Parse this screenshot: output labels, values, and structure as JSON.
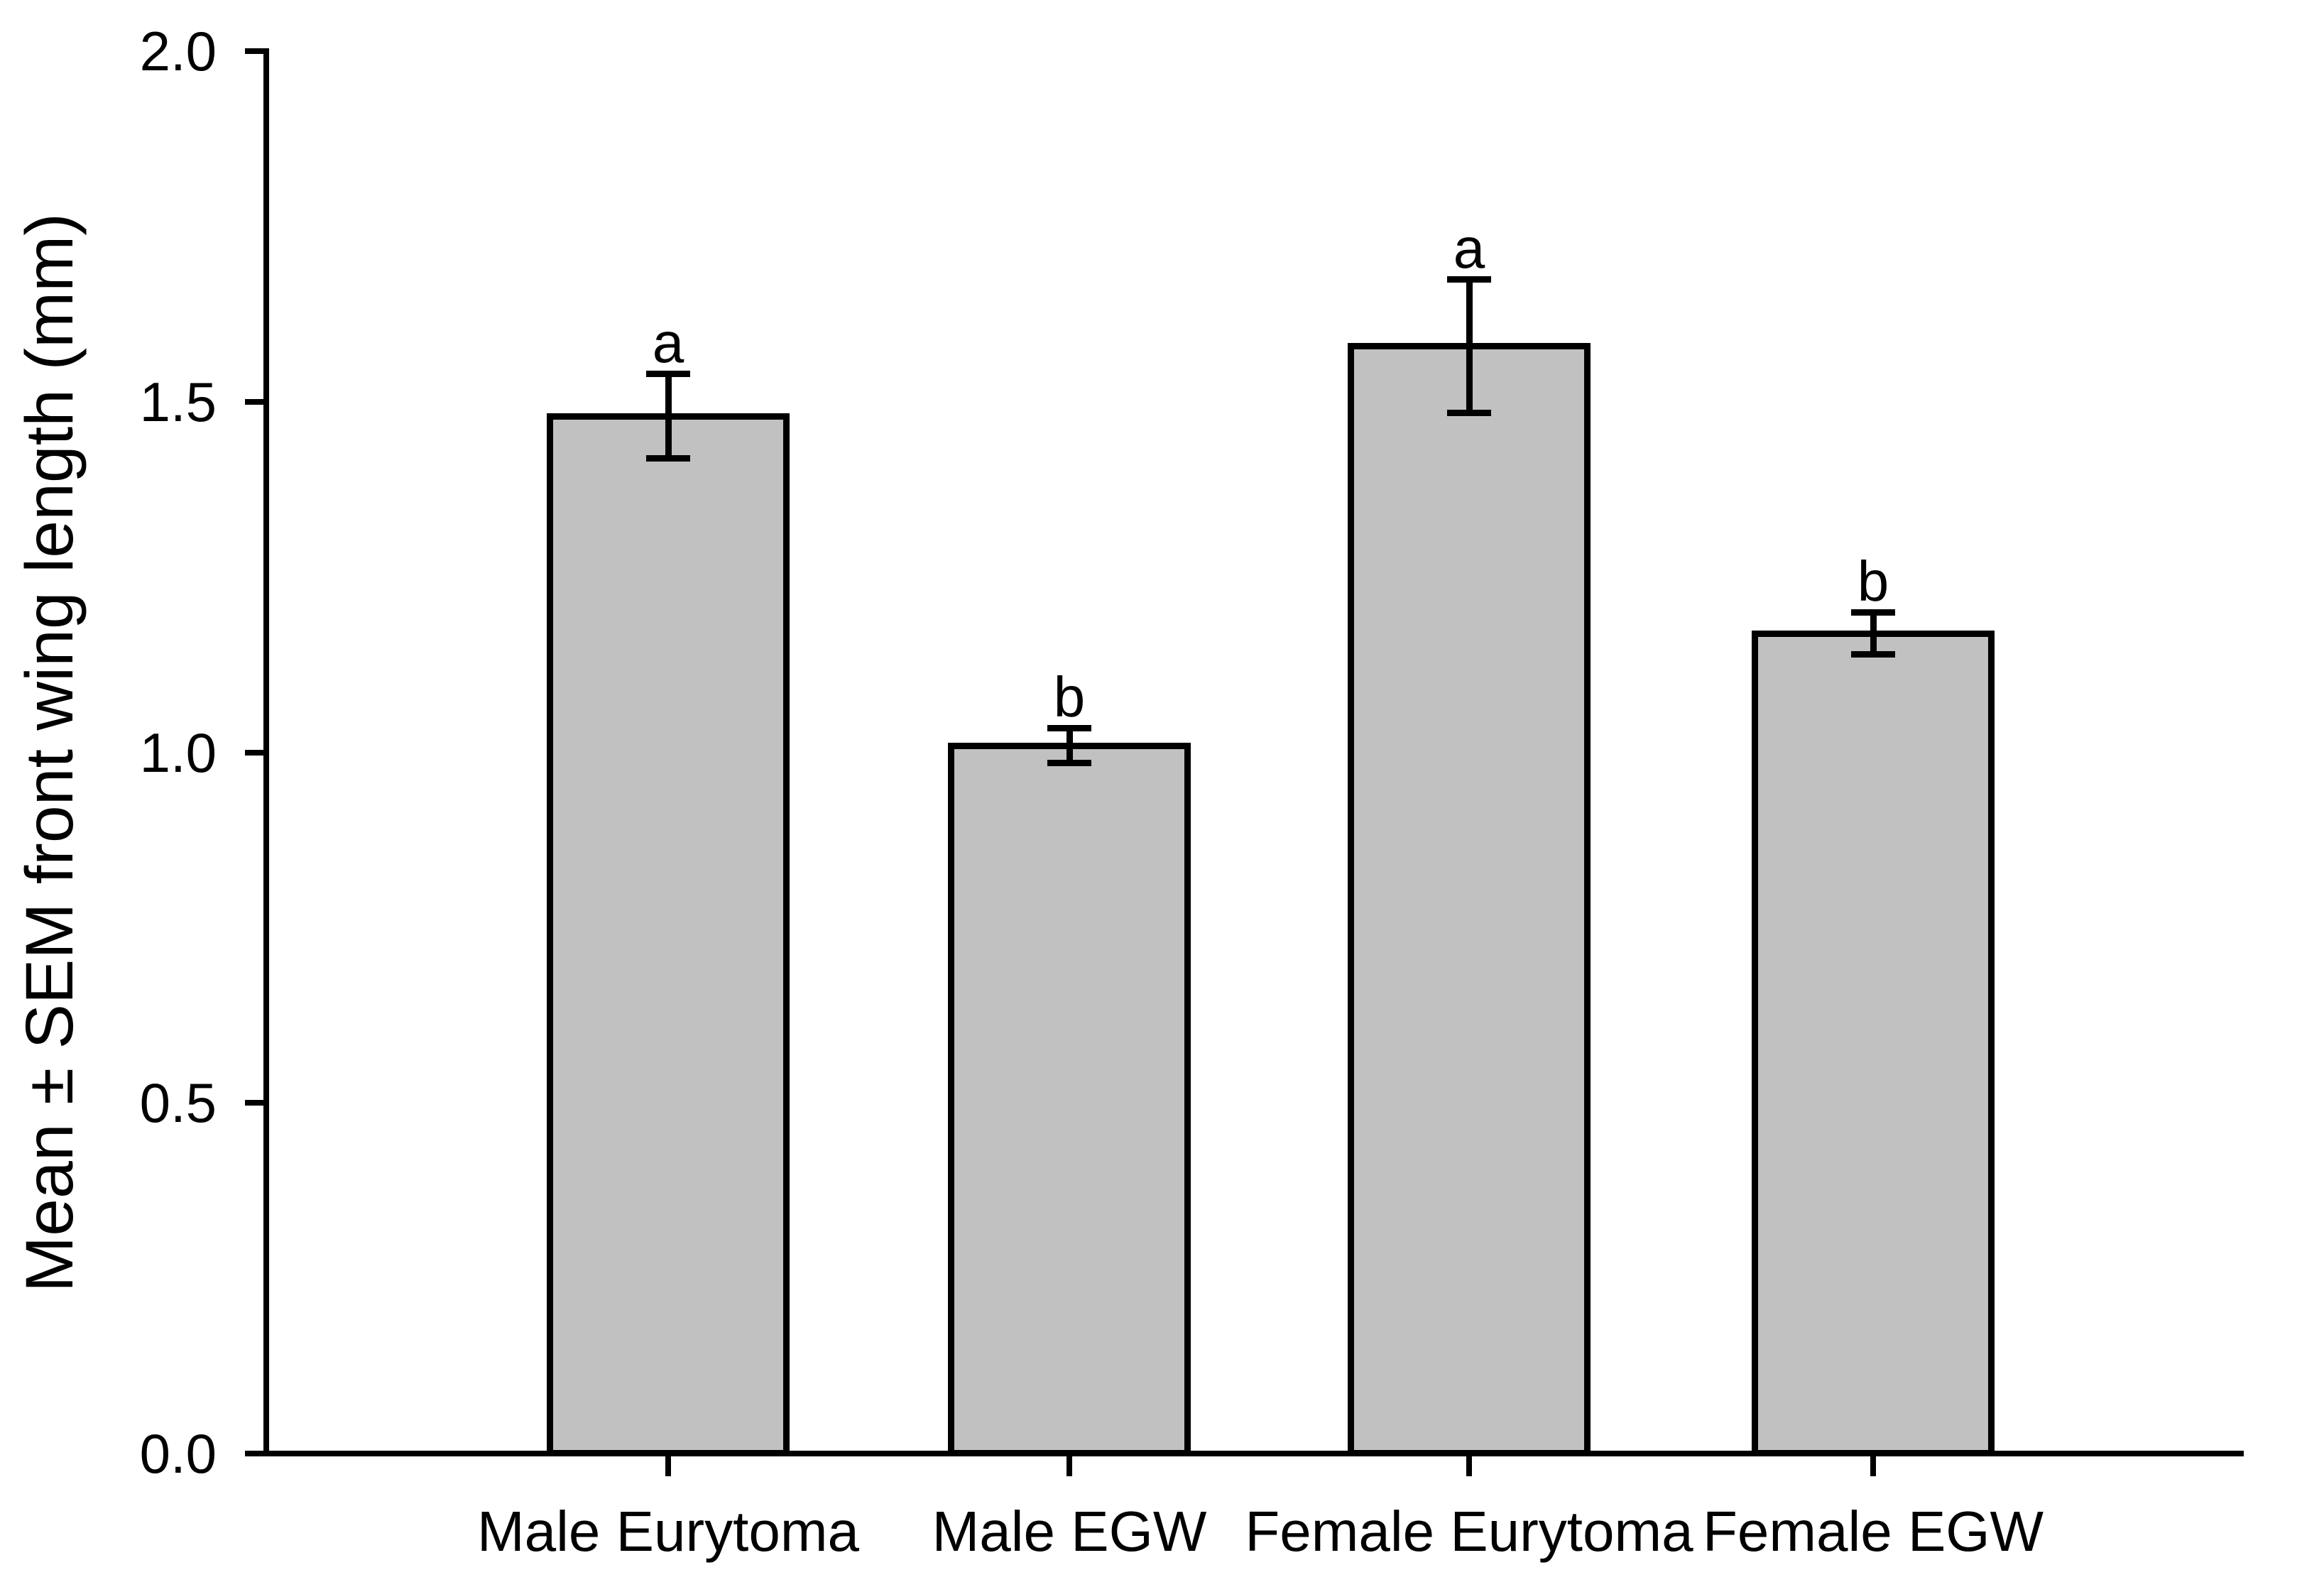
{
  "chart_data": {
    "type": "bar",
    "title": "",
    "ylabel": "Mean ± SEM front wing length (mm)",
    "xlabel": "",
    "categories": [
      "Male Eurytoma",
      "Male EGW",
      "Female Eurytoma",
      "Female EGW"
    ],
    "values": [
      1.48,
      1.01,
      1.58,
      1.17
    ],
    "sem": [
      0.06,
      0.025,
      0.095,
      0.03
    ],
    "sig_letters": [
      "a",
      "b",
      "a",
      "b"
    ],
    "ylim": [
      0.0,
      2.0
    ],
    "yticks": [
      0.0,
      0.5,
      1.0,
      1.5,
      2.0
    ],
    "ytick_labels": [
      "0.0",
      "0.5",
      "1.0",
      "1.5",
      "2.0"
    ],
    "bar_fill_color": "#c1c1c1",
    "bar_border_color": "#000000",
    "axis_color": "#000000",
    "background_color": "#ffffff",
    "grid": "off",
    "legend": "none",
    "error_bars": "mean ± SEM with caps"
  }
}
